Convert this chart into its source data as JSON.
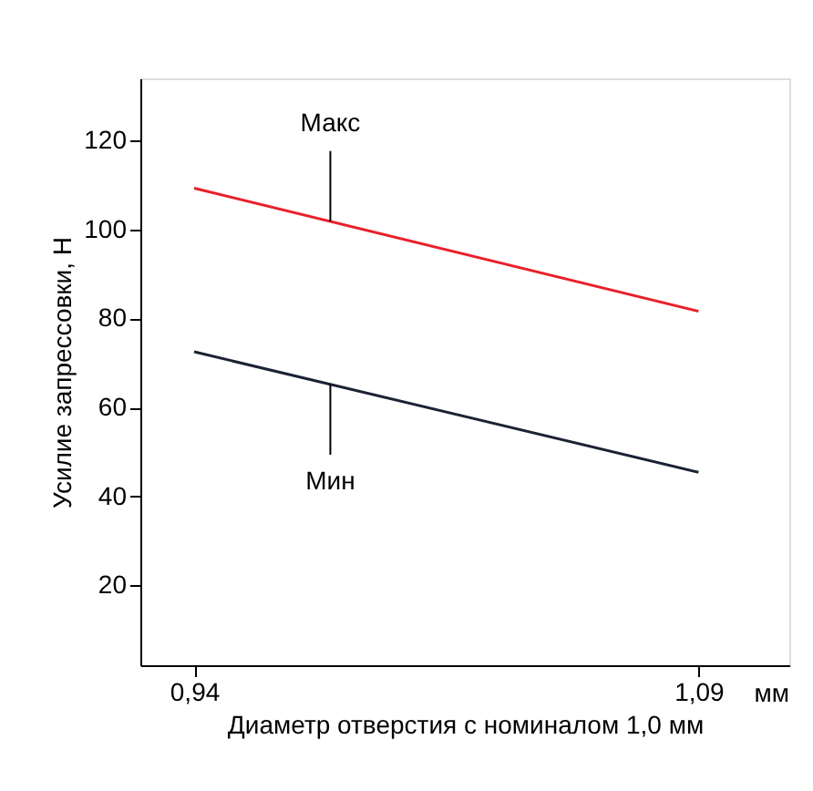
{
  "chart_data": {
    "type": "line",
    "xlabel": "Диаметр отверстия с номиналом 1,0 мм",
    "ylabel": "Усилие запрессовки, Н",
    "x": [
      0.94,
      1.09
    ],
    "series": [
      {
        "name": "Макс",
        "color": "#e8202a",
        "values": [
          109.3,
          81.6
        ]
      },
      {
        "name": "Мин",
        "color": "#1a2233",
        "values": [
          72.5,
          45.4
        ]
      }
    ],
    "xlim": [
      0.924,
      1.117
    ],
    "ylim": [
      2,
      134
    ],
    "xticks": [
      {
        "value": 0.94,
        "label": "0,94"
      },
      {
        "value": 1.09,
        "label": "1,09"
      }
    ],
    "yticks": [
      20,
      40,
      60,
      80,
      100,
      120
    ],
    "annotations": [
      "мм"
    ],
    "grid": false,
    "line_style": "solid"
  }
}
